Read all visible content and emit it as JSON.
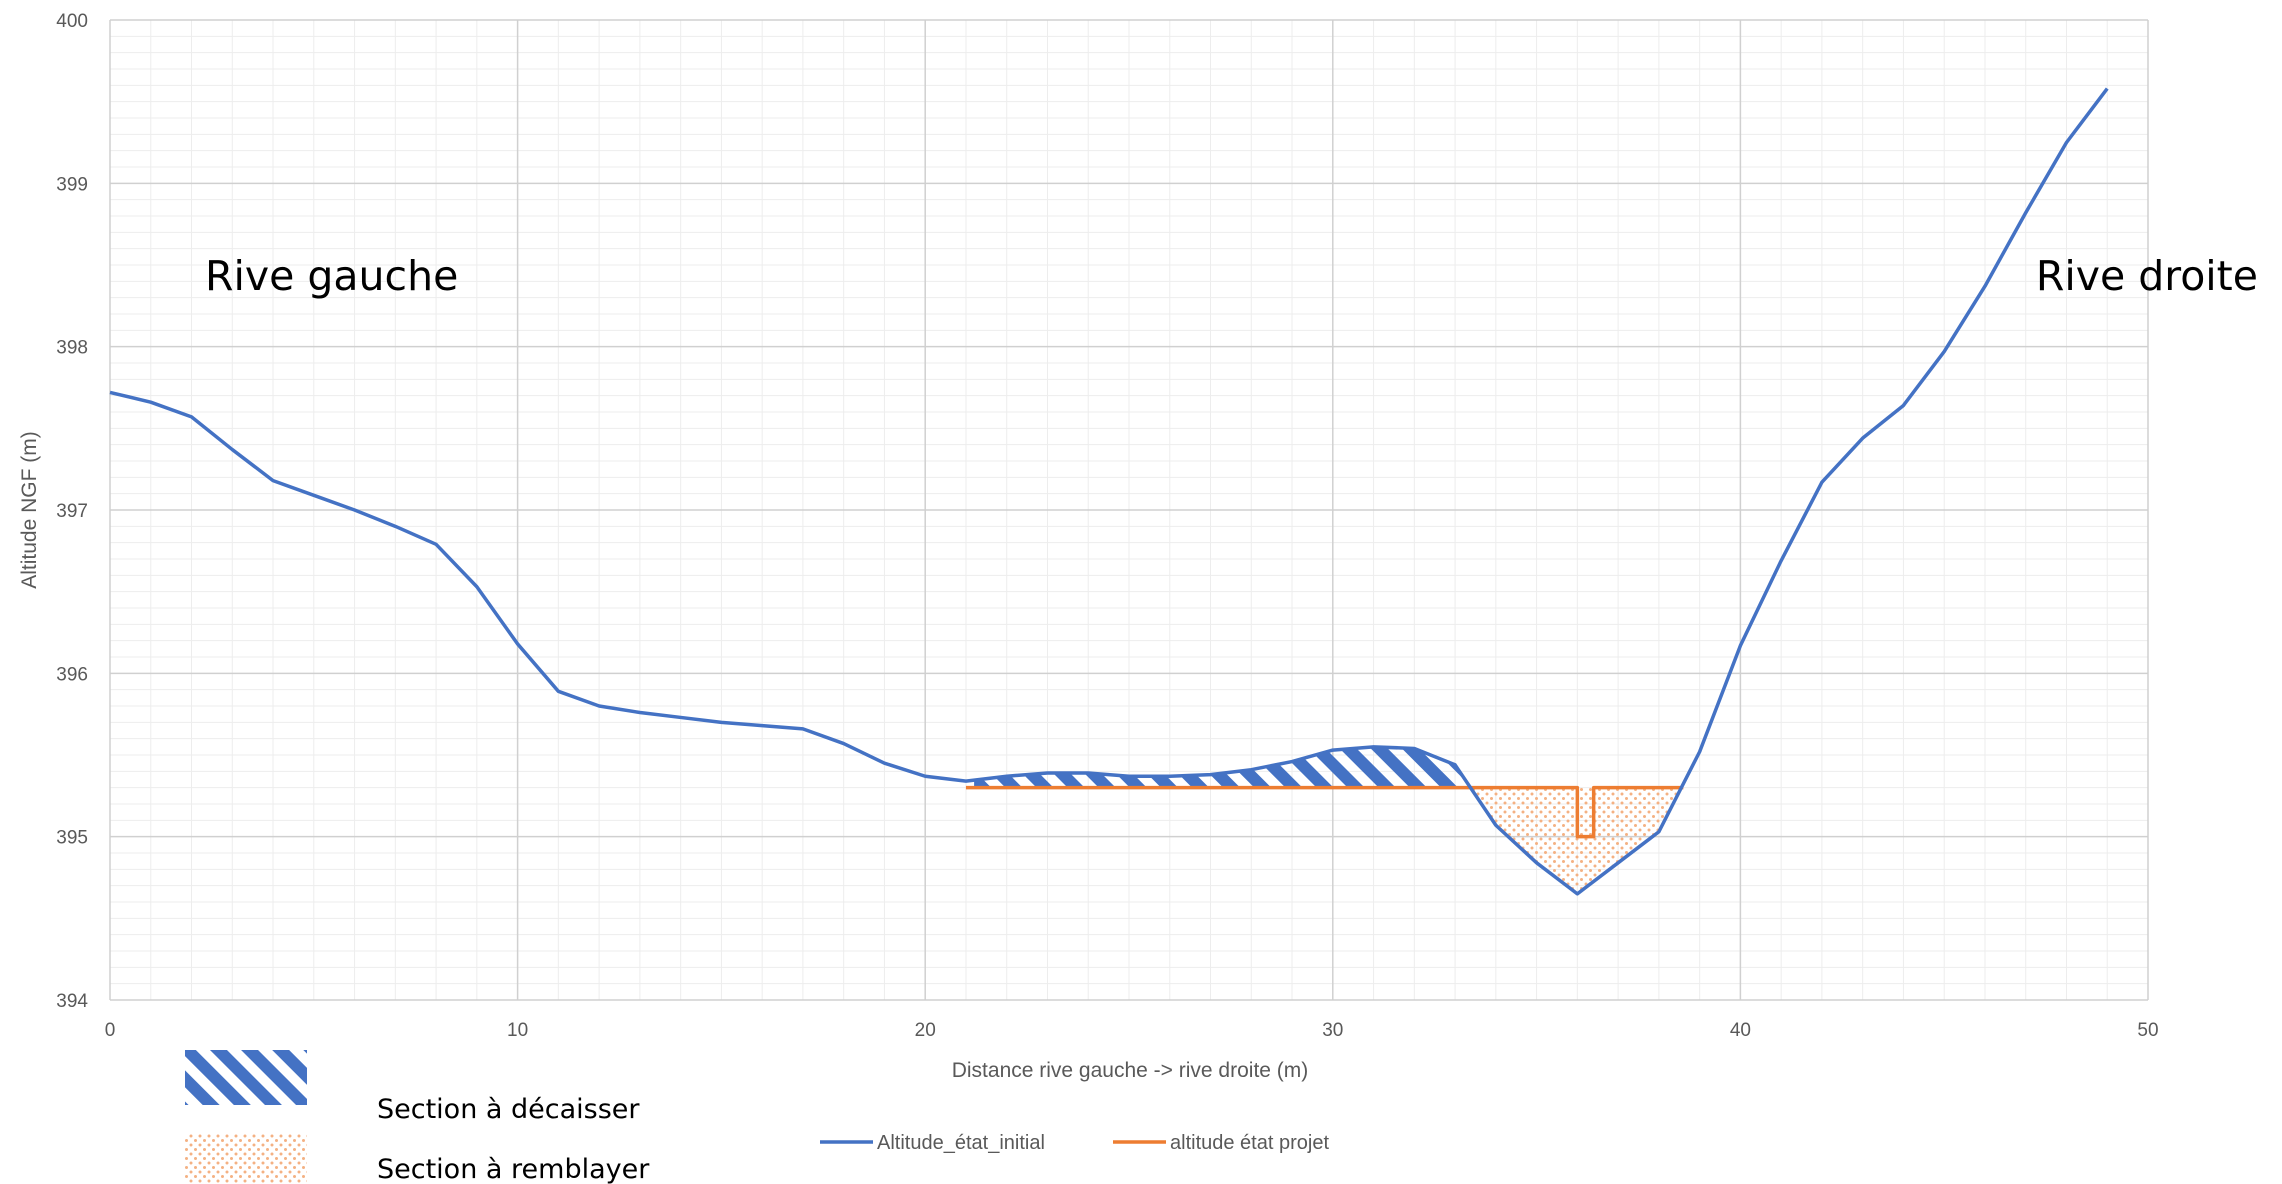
{
  "chart_data": {
    "type": "line",
    "xlabel": "Distance rive gauche -> rive droite (m)",
    "ylabel": "Altitude NGF (m)",
    "xlim": [
      0,
      50
    ],
    "ylim": [
      394,
      400
    ],
    "x_ticks": [
      "0",
      "10",
      "20",
      "30",
      "40",
      "50"
    ],
    "y_ticks": [
      "394",
      "395",
      "396",
      "397",
      "398",
      "399",
      "400"
    ],
    "grid": {
      "major": true,
      "minor": true
    },
    "annotations": {
      "left_bank": "Rive gauche",
      "right_bank": "Rive droite"
    },
    "hatch_key": {
      "cut_label": "Section à décaisser",
      "fill_label": "Section à remblayer"
    },
    "legend_position": "bottom",
    "series": [
      {
        "name": "Altitude_état_initial",
        "color": "#4472C4",
        "points": [
          [
            0,
            397.72
          ],
          [
            1,
            397.66
          ],
          [
            2,
            397.57
          ],
          [
            3,
            397.37
          ],
          [
            4,
            397.18
          ],
          [
            5,
            397.09
          ],
          [
            6,
            397.0
          ],
          [
            7,
            396.9
          ],
          [
            8,
            396.79
          ],
          [
            9,
            396.53
          ],
          [
            10,
            396.18
          ],
          [
            11,
            395.89
          ],
          [
            12,
            395.8
          ],
          [
            13,
            395.76
          ],
          [
            14,
            395.73
          ],
          [
            15,
            395.7
          ],
          [
            16,
            395.68
          ],
          [
            17,
            395.66
          ],
          [
            18,
            395.57
          ],
          [
            19,
            395.45
          ],
          [
            20,
            395.37
          ],
          [
            21,
            395.34
          ],
          [
            22,
            395.37
          ],
          [
            23,
            395.39
          ],
          [
            24,
            395.39
          ],
          [
            25,
            395.37
          ],
          [
            26,
            395.37
          ],
          [
            27,
            395.38
          ],
          [
            28,
            395.41
          ],
          [
            29,
            395.46
          ],
          [
            30,
            395.53
          ],
          [
            31,
            395.55
          ],
          [
            32,
            395.54
          ],
          [
            33,
            395.44
          ],
          [
            34,
            395.07
          ],
          [
            35,
            394.84
          ],
          [
            36,
            394.65
          ],
          [
            37,
            394.84
          ],
          [
            38,
            395.03
          ],
          [
            39,
            395.52
          ],
          [
            40,
            396.17
          ],
          [
            41,
            396.69
          ],
          [
            42,
            397.17
          ],
          [
            43,
            397.44
          ],
          [
            44,
            397.64
          ],
          [
            45,
            397.97
          ],
          [
            46,
            398.37
          ],
          [
            47,
            398.82
          ],
          [
            48,
            399.25
          ],
          [
            49,
            399.58
          ]
        ]
      },
      {
        "name": "altitude état projet",
        "color": "#ED7D31",
        "points": [
          [
            21,
            395.3
          ],
          [
            36,
            395.3
          ],
          [
            36,
            395.0
          ],
          [
            36.4,
            395.0
          ],
          [
            36.4,
            395.3
          ],
          [
            38.6,
            395.3
          ]
        ]
      }
    ]
  }
}
